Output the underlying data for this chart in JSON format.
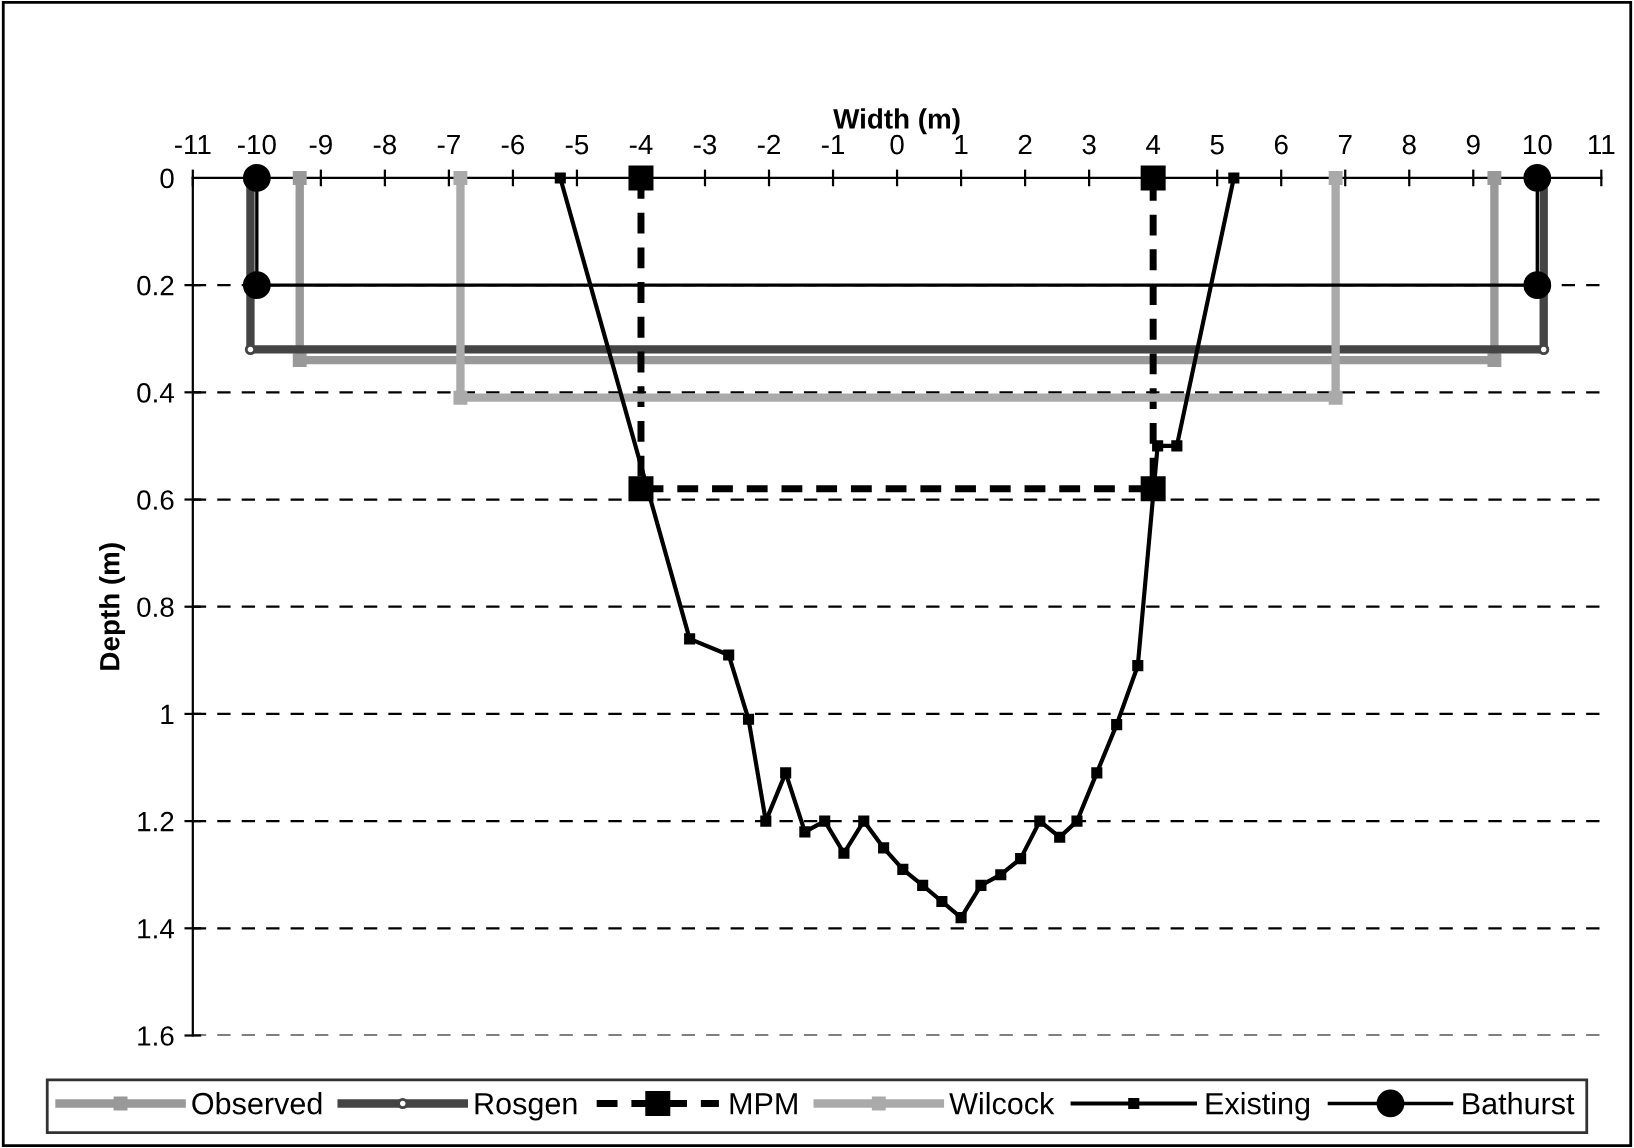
{
  "chart_data": {
    "type": "line",
    "xlabel": "Width (m)",
    "ylabel": "Depth (m)",
    "xlim": [
      -11,
      11
    ],
    "xticks": [
      -11,
      -10,
      -9,
      -8,
      -7,
      -6,
      -5,
      -4,
      -3,
      -2,
      -1,
      0,
      1,
      2,
      3,
      4,
      5,
      6,
      7,
      8,
      9,
      10,
      11
    ],
    "ylim": [
      1.6,
      0
    ],
    "yticks": [
      0,
      0.2,
      0.4,
      0.6,
      0.8,
      1,
      1.2,
      1.4,
      1.6
    ],
    "grid": "y",
    "legend": "bottom",
    "series": [
      {
        "name": "Observed",
        "color": "#999999",
        "marker": "square",
        "line_style": "solid",
        "x": [
          -9.33,
          -9.33,
          9.33,
          9.33
        ],
        "values": [
          0,
          0.34,
          0.34,
          0
        ]
      },
      {
        "name": "Rosgen",
        "color": "#444444",
        "marker": "circle",
        "line_style": "solid",
        "x": [
          -10.1,
          -10.1,
          10.1,
          10.1
        ],
        "values": [
          0,
          0.32,
          0.32,
          0
        ]
      },
      {
        "name": "MPM",
        "color": "#000000",
        "marker": "square",
        "line_style": "dashed",
        "x": [
          -4,
          -4,
          4,
          4
        ],
        "values": [
          0,
          0.58,
          0.58,
          0
        ]
      },
      {
        "name": "Wilcock",
        "color": "#aaaaaa",
        "marker": "square",
        "line_style": "solid",
        "x": [
          -6.82,
          -6.82,
          6.85,
          6.85
        ],
        "values": [
          0,
          0.41,
          0.41,
          0
        ]
      },
      {
        "name": "Existing",
        "color": "#000000",
        "marker": "square",
        "line_style": "solid",
        "x": [
          -5.26,
          -3.24,
          -2.63,
          -2.32,
          -2.05,
          -1.74,
          -1.44,
          -1.13,
          -0.83,
          -0.52,
          -0.21,
          0.09,
          0.4,
          0.7,
          1.0,
          1.31,
          1.62,
          1.93,
          2.23,
          2.54,
          2.81,
          3.12,
          3.43,
          3.76,
          4.07,
          4.37,
          5.26
        ],
        "values": [
          0,
          0.86,
          0.89,
          1.01,
          1.2,
          1.11,
          1.22,
          1.2,
          1.26,
          1.2,
          1.25,
          1.29,
          1.32,
          1.35,
          1.38,
          1.32,
          1.3,
          1.27,
          1.2,
          1.23,
          1.2,
          1.11,
          1.02,
          0.91,
          0.5,
          0.5,
          0
        ]
      },
      {
        "name": "Bathurst",
        "color": "#000000",
        "marker": "circle",
        "line_style": "solid",
        "x": [
          -10,
          -10,
          10,
          10
        ],
        "values": [
          0,
          0.2,
          0.2,
          0
        ]
      }
    ]
  }
}
